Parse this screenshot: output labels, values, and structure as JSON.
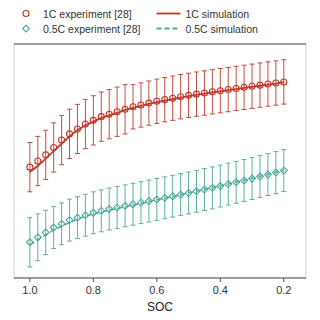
{
  "chart_data": {
    "type": "line",
    "x_label": "SOC",
    "x": [
      1.0,
      0.975,
      0.95,
      0.925,
      0.9,
      0.875,
      0.85,
      0.825,
      0.8,
      0.775,
      0.75,
      0.725,
      0.7,
      0.675,
      0.65,
      0.625,
      0.6,
      0.575,
      0.55,
      0.525,
      0.5,
      0.475,
      0.45,
      0.425,
      0.4,
      0.375,
      0.35,
      0.325,
      0.3,
      0.275,
      0.25,
      0.225,
      0.2
    ],
    "xlim": [
      1.05,
      0.13
    ],
    "xticks": [
      {
        "value": 1.0,
        "label": "1.0"
      },
      0.8,
      0.6,
      0.4,
      0.2
    ],
    "ylim": [
      -0.62,
      1.28
    ],
    "tick_labels": "x",
    "grid": false,
    "legend": "upper left",
    "series": [
      {
        "name": "1C experiment [28]",
        "type": "scatter",
        "marker": "circle",
        "color": "#c0392b",
        "values": [
          0.28,
          0.33,
          0.38,
          0.44,
          0.5,
          0.55,
          0.59,
          0.63,
          0.66,
          0.69,
          0.71,
          0.73,
          0.75,
          0.77,
          0.785,
          0.8,
          0.815,
          0.828,
          0.84,
          0.852,
          0.863,
          0.873,
          0.882,
          0.892,
          0.901,
          0.91,
          0.919,
          0.928,
          0.937,
          0.946,
          0.955,
          0.963,
          0.972
        ],
        "errors": [
          0.2,
          0.2,
          0.2,
          0.2,
          0.2,
          0.2,
          0.2,
          0.2,
          0.2,
          0.2,
          0.2,
          0.2,
          0.2,
          0.18,
          0.18,
          0.18,
          0.18,
          0.18,
          0.18,
          0.18,
          0.18,
          0.18,
          0.18,
          0.18,
          0.18,
          0.18,
          0.18,
          0.18,
          0.18,
          0.18,
          0.18,
          0.18,
          0.18
        ]
      },
      {
        "name": "1C simulation",
        "type": "line",
        "line_style": "solid",
        "color": "#c0392b",
        "values": [
          0.24,
          0.29,
          0.35,
          0.41,
          0.47,
          0.53,
          0.58,
          0.62,
          0.65,
          0.68,
          0.7,
          0.72,
          0.745,
          0.762,
          0.778,
          0.793,
          0.808,
          0.821,
          0.833,
          0.845,
          0.856,
          0.867,
          0.877,
          0.887,
          0.896,
          0.905,
          0.914,
          0.923,
          0.932,
          0.941,
          0.95,
          0.959,
          0.97
        ]
      },
      {
        "name": "0.5C experiment [28]",
        "type": "scatter",
        "marker": "diamond",
        "color": "#4ca99a",
        "values": [
          -0.33,
          -0.29,
          -0.25,
          -0.21,
          -0.18,
          -0.15,
          -0.13,
          -0.11,
          -0.09,
          -0.075,
          -0.06,
          -0.047,
          -0.034,
          -0.021,
          -0.008,
          0.005,
          0.018,
          0.031,
          0.044,
          0.057,
          0.07,
          0.084,
          0.098,
          0.112,
          0.127,
          0.142,
          0.157,
          0.172,
          0.188,
          0.204,
          0.22,
          0.236,
          0.252
        ],
        "errors": [
          0.2,
          0.19,
          0.18,
          0.17,
          0.17,
          0.17,
          0.17,
          0.17,
          0.17,
          0.17,
          0.17,
          0.17,
          0.17,
          0.17,
          0.17,
          0.17,
          0.17,
          0.17,
          0.17,
          0.17,
          0.17,
          0.17,
          0.17,
          0.17,
          0.17,
          0.17,
          0.17,
          0.17,
          0.17,
          0.17,
          0.17,
          0.17,
          0.17
        ]
      },
      {
        "name": "0.5C simulation",
        "type": "line",
        "line_style": "dashed",
        "color": "#4ca99a",
        "values": [
          -0.35,
          -0.31,
          -0.27,
          -0.23,
          -0.2,
          -0.17,
          -0.14,
          -0.12,
          -0.1,
          -0.085,
          -0.07,
          -0.056,
          -0.042,
          -0.028,
          -0.014,
          0.0,
          0.014,
          0.028,
          0.042,
          0.056,
          0.07,
          0.084,
          0.098,
          0.113,
          0.128,
          0.143,
          0.158,
          0.174,
          0.19,
          0.206,
          0.222,
          0.238,
          0.256
        ]
      }
    ]
  }
}
